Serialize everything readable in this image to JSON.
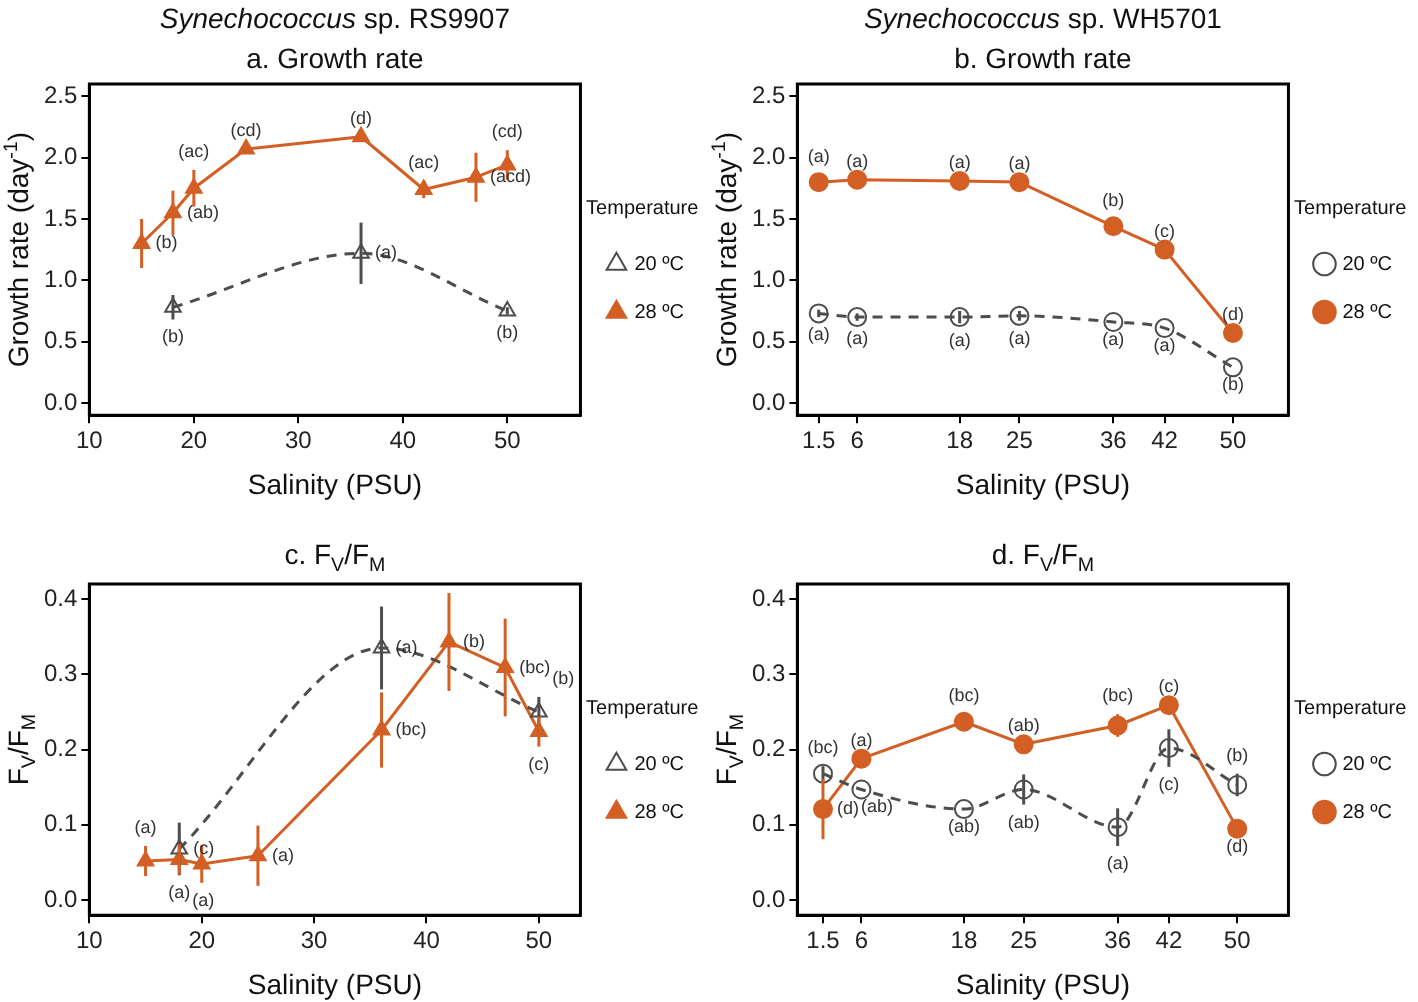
{
  "chart_data": [
    {
      "type": "line",
      "title": "Synechococcus sp. RS9907",
      "subtitle": "a. Growth rate",
      "xlabel": "Salinity (PSU)",
      "ylabel": "Growth rate (day$^{-1}$)",
      "legend_title": "Temperature",
      "legend": "right",
      "marker": "triangle",
      "grid": false,
      "x": [
        15,
        18,
        20,
        25,
        36,
        42,
        47,
        50
      ],
      "series": [
        {
          "name": "20 ºC",
          "color": "#4d4d4d",
          "line_style": "dashed",
          "x": [
            18,
            36,
            50
          ],
          "values": [
            0.78,
            1.22,
            0.75
          ],
          "errors": [
            0.1,
            0.25,
            0.03
          ]
        },
        {
          "name": "28 ºC",
          "color": "#d35f24",
          "line_style": "solid",
          "values": [
            1.3,
            1.55,
            1.75,
            2.07,
            2.17,
            1.74,
            1.84,
            1.94
          ],
          "errors": [
            0.2,
            0.18,
            0.15,
            null,
            null,
            0.07,
            0.2,
            0.12
          ]
        }
      ],
      "xlim": [
        10,
        57
      ],
      "xticks": [
        10,
        20,
        30,
        40,
        50
      ],
      "ylim": [
        -0.1,
        2.6
      ],
      "yticks": [
        {
          "value": 0,
          "label": "0.0"
        },
        0.5,
        {
          "value": 1,
          "label": "1.0"
        },
        1.5,
        {
          "value": 2,
          "label": "2.0"
        },
        2.5
      ],
      "annotations": [
        {
          "text": "(b)",
          "x": 15,
          "y": 1.3
        },
        {
          "text": "(ab)",
          "x": 18,
          "y": 1.55
        },
        {
          "text": "(ac)",
          "x": 20,
          "y": 1.75
        },
        {
          "text": "(cd)",
          "x": 25,
          "y": 2.07
        },
        {
          "text": "(d)",
          "x": 36,
          "y": 2.17
        },
        {
          "text": "(ac)",
          "x": 42,
          "y": 1.74
        },
        {
          "text": "(acd)",
          "x": 47,
          "y": 1.84
        },
        {
          "text": "(cd)",
          "x": 50,
          "y": 1.94
        },
        {
          "text": "(b)",
          "x": 18,
          "y": 0.78
        },
        {
          "text": "(a)",
          "x": 36,
          "y": 1.22
        },
        {
          "text": "(b)",
          "x": 50,
          "y": 0.75
        }
      ]
    },
    {
      "type": "line",
      "title": "Synechococcus sp. WH5701",
      "subtitle": "b. Growth rate",
      "xlabel": "Salinity (PSU)",
      "ylabel": "Growth rate (day$^{-1}$)",
      "legend_title": "Temperature",
      "legend": "right",
      "marker": "circle",
      "grid": false,
      "x": [
        1.5,
        6,
        18,
        25,
        36,
        42,
        50
      ],
      "series": [
        {
          "name": "20 ºC",
          "color": "#4d4d4d",
          "line_style": "dashed",
          "values": [
            0.73,
            0.7,
            0.7,
            0.71,
            0.66,
            0.61,
            0.29
          ],
          "errors": [
            0.03,
            0.03,
            0.05,
            0.04,
            null,
            null,
            null
          ]
        },
        {
          "name": "28 ºC",
          "color": "#d35f24",
          "line_style": "solid",
          "values": [
            1.8,
            1.82,
            1.81,
            1.8,
            1.44,
            1.25,
            0.57
          ],
          "errors": [
            0.06,
            null,
            null,
            null,
            0.06,
            null,
            null
          ]
        }
      ],
      "xlim": [
        -1,
        56.5
      ],
      "xticks": [
        1.5,
        6,
        18,
        25,
        36,
        42,
        50
      ],
      "ylim": [
        -0.1,
        2.6
      ],
      "yticks": [
        {
          "value": 0,
          "label": "0.0"
        },
        0.5,
        {
          "value": 1,
          "label": "1.0"
        },
        1.5,
        {
          "value": 2,
          "label": "2.0"
        },
        2.5
      ],
      "annotations": [
        {
          "text": "(a)",
          "x": 1.5,
          "y": 1.8
        },
        {
          "text": "(a)",
          "x": 6,
          "y": 1.82
        },
        {
          "text": "(a)",
          "x": 18,
          "y": 1.81
        },
        {
          "text": "(a)",
          "x": 25,
          "y": 1.8
        },
        {
          "text": "(b)",
          "x": 36,
          "y": 1.44
        },
        {
          "text": "(c)",
          "x": 42,
          "y": 1.25
        },
        {
          "text": "(d)",
          "x": 50,
          "y": 0.57
        },
        {
          "text": "(a)",
          "x": 1.5,
          "y": 0.73
        },
        {
          "text": "(a)",
          "x": 6,
          "y": 0.7
        },
        {
          "text": "(a)",
          "x": 18,
          "y": 0.7
        },
        {
          "text": "(a)",
          "x": 25,
          "y": 0.71
        },
        {
          "text": "(a)",
          "x": 36,
          "y": 0.66
        },
        {
          "text": "(a)",
          "x": 42,
          "y": 0.61
        },
        {
          "text": "(b)",
          "x": 50,
          "y": 0.29
        }
      ]
    },
    {
      "type": "line",
      "title": "c. F$_{V}$/F$_{M}$",
      "xlabel": "Salinity (PSU)",
      "ylabel": "F$_{V}$/F$_{M}$",
      "legend_title": "Temperature",
      "legend": "right",
      "marker": "triangle",
      "grid": false,
      "x": [
        15,
        18,
        20,
        25,
        36,
        42,
        47,
        50
      ],
      "series": [
        {
          "name": "20 ºC",
          "color": "#4d4d4d",
          "line_style": "dashed",
          "x": [
            18,
            36,
            50
          ],
          "values": [
            0.068,
            0.335,
            0.25
          ],
          "errors": [
            0.035,
            0.055,
            0.02
          ]
        },
        {
          "name": "28 ºC",
          "color": "#d35f24",
          "line_style": "solid",
          "values": [
            0.052,
            0.054,
            0.048,
            0.059,
            0.226,
            0.343,
            0.309,
            0.224
          ],
          "errors": [
            0.02,
            0.02,
            0.025,
            0.04,
            0.05,
            0.065,
            0.065,
            0.02
          ]
        }
      ],
      "xlim": [
        10,
        53.7
      ],
      "xticks": [
        10,
        20,
        30,
        40,
        50
      ],
      "ylim": [
        -0.02,
        0.42
      ],
      "yticks": [
        {
          "value": 0,
          "label": "0.0"
        },
        0.1,
        0.2,
        0.3,
        0.4
      ],
      "annotations": [
        {
          "text": "(a)",
          "x": 15,
          "y": 0.052
        },
        {
          "text": "(a)",
          "x": 18,
          "y": 0.054
        },
        {
          "text": "(a)",
          "x": 20,
          "y": 0.048
        },
        {
          "text": "(a)",
          "x": 25,
          "y": 0.059
        },
        {
          "text": "(bc)",
          "x": 36,
          "y": 0.226
        },
        {
          "text": "(b)",
          "x": 42,
          "y": 0.343
        },
        {
          "text": "(bc)",
          "x": 47,
          "y": 0.309
        },
        {
          "text": "(c)",
          "x": 50,
          "y": 0.224
        },
        {
          "text": "(c)",
          "x": 18,
          "y": 0.068
        },
        {
          "text": "(a)",
          "x": 36,
          "y": 0.335
        },
        {
          "text": "(b)",
          "x": 50,
          "y": 0.25
        }
      ]
    },
    {
      "type": "line",
      "title": "d. F$_{V}$/F$_{M}$",
      "xlabel": "Salinity (PSU)",
      "ylabel": "F$_{V}$/F$_{M}$",
      "legend_title": "Temperature",
      "legend": "right",
      "marker": "circle",
      "grid": false,
      "x": [
        1.5,
        6,
        18,
        25,
        36,
        42,
        50
      ],
      "series": [
        {
          "name": "20 ºC",
          "color": "#4d4d4d",
          "line_style": "dashed",
          "values": [
            0.168,
            0.147,
            0.121,
            0.147,
            0.097,
            0.202,
            0.153
          ],
          "errors": [
            0.01,
            null,
            null,
            0.02,
            0.025,
            0.025,
            0.015
          ]
        },
        {
          "name": "28 ºC",
          "color": "#d35f24",
          "line_style": "solid",
          "values": [
            0.121,
            0.188,
            0.237,
            0.207,
            0.232,
            0.259,
            0.095
          ],
          "errors": [
            0.04,
            null,
            0.01,
            null,
            0.015,
            null,
            null
          ]
        }
      ],
      "xlim": [
        -1.5,
        56
      ],
      "xticks": [
        1.5,
        6,
        18,
        25,
        36,
        42,
        50
      ],
      "ylim": [
        -0.02,
        0.42
      ],
      "yticks": [
        {
          "value": 0,
          "label": "0.0"
        },
        0.1,
        0.2,
        0.3,
        0.4
      ],
      "annotations": [
        {
          "text": "(d)",
          "x": 1.5,
          "y": 0.121
        },
        {
          "text": "(a)",
          "x": 6,
          "y": 0.188
        },
        {
          "text": "(bc)",
          "x": 18,
          "y": 0.237
        },
        {
          "text": "(ab)",
          "x": 25,
          "y": 0.207
        },
        {
          "text": "(bc)",
          "x": 36,
          "y": 0.232
        },
        {
          "text": "(c)",
          "x": 42,
          "y": 0.259
        },
        {
          "text": "(d)",
          "x": 50,
          "y": 0.095
        },
        {
          "text": "(bc)",
          "x": 1.5,
          "y": 0.168
        },
        {
          "text": "(ab)",
          "x": 6,
          "y": 0.147
        },
        {
          "text": "(ab)",
          "x": 18,
          "y": 0.121
        },
        {
          "text": "(ab)",
          "x": 25,
          "y": 0.147
        },
        {
          "text": "(a)",
          "x": 36,
          "y": 0.097
        },
        {
          "text": "(c)",
          "x": 42,
          "y": 0.202
        },
        {
          "text": "(b)",
          "x": 50,
          "y": 0.153
        }
      ]
    }
  ]
}
